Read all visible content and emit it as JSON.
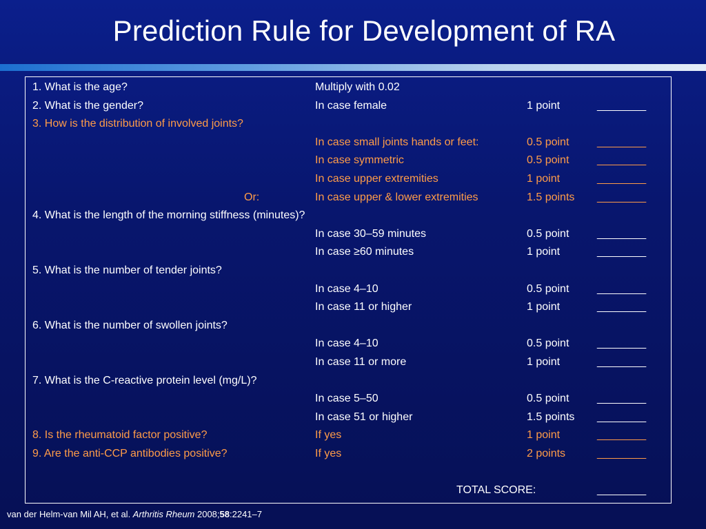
{
  "title": "Prediction Rule for Development of RA",
  "blank": "________",
  "rows": [
    {
      "question": "1. What is the age?",
      "or": "",
      "condition": "Multiply with 0.02",
      "points": "",
      "score_line": false,
      "color": "white"
    },
    {
      "question": "2. What is the gender?",
      "or": "",
      "condition": "In case female",
      "points": "1 point",
      "score_line": true,
      "color": "white"
    },
    {
      "question": "3. How is the distribution of involved joints?",
      "or": "",
      "condition": "",
      "points": "",
      "score_line": false,
      "color": "orange"
    },
    {
      "question": "",
      "or": "",
      "condition": "In case small joints hands or feet:",
      "points": "0.5 point",
      "score_line": true,
      "color": "orange"
    },
    {
      "question": "",
      "or": "",
      "condition": "In case symmetric",
      "points": "0.5 point",
      "score_line": true,
      "color": "orange"
    },
    {
      "question": "",
      "or": "",
      "condition": "In case upper extremities",
      "points": "1 point",
      "score_line": true,
      "color": "orange"
    },
    {
      "question": "",
      "or": "Or:",
      "condition": "In case upper & lower extremities",
      "points": "1.5 points",
      "score_line": true,
      "color": "orange"
    },
    {
      "question": "4. What is the length of the morning stiffness (minutes)?",
      "or": "",
      "condition": "",
      "points": "",
      "score_line": false,
      "color": "white"
    },
    {
      "question": "",
      "or": "",
      "condition": "In case 30–59 minutes",
      "points": "0.5 point",
      "score_line": true,
      "color": "white"
    },
    {
      "question": "",
      "or": "",
      "condition": "In case ≥60 minutes",
      "points": "1 point",
      "score_line": true,
      "color": "white"
    },
    {
      "question": "5. What is the number of tender joints?",
      "or": "",
      "condition": "",
      "points": "",
      "score_line": false,
      "color": "white"
    },
    {
      "question": "",
      "or": "",
      "condition": "In case 4–10",
      "points": "0.5 point",
      "score_line": true,
      "color": "white"
    },
    {
      "question": "",
      "or": "",
      "condition": "In case 11 or higher",
      "points": "1 point",
      "score_line": true,
      "color": "white"
    },
    {
      "question": "6. What is the number of swollen joints?",
      "or": "",
      "condition": "",
      "points": "",
      "score_line": false,
      "color": "white"
    },
    {
      "question": "",
      "or": "",
      "condition": "In case 4–10",
      "points": "0.5 point",
      "score_line": true,
      "color": "white"
    },
    {
      "question": "",
      "or": "",
      "condition": "In case 11 or more",
      "points": "1 point",
      "score_line": true,
      "color": "white"
    },
    {
      "question": "7. What is the C-reactive protein level (mg/L)?",
      "or": "",
      "condition": "",
      "points": "",
      "score_line": false,
      "color": "white"
    },
    {
      "question": "",
      "or": "",
      "condition": "In case 5–50",
      "points": "0.5 point",
      "score_line": true,
      "color": "white"
    },
    {
      "question": "",
      "or": "",
      "condition": "In case 51 or higher",
      "points": "1.5 points",
      "score_line": true,
      "color": "white"
    },
    {
      "question": "8. Is the rheumatoid factor positive?",
      "or": "",
      "condition": "If yes",
      "points": "1 point",
      "score_line": true,
      "color": "orange"
    },
    {
      "question": "9. Are the anti-CCP antibodies positive?",
      "or": "",
      "condition": "If yes",
      "points": "2 points",
      "score_line": true,
      "color": "orange"
    }
  ],
  "total": {
    "label": "TOTAL SCORE:",
    "line": "________"
  },
  "citation": {
    "authors": "van der Helm-van Mil AH, et al. ",
    "journal": "Arthritis Rheum",
    "year": " 2008;",
    "volume": "58",
    "pages": ":2241–7"
  },
  "colors": {
    "background": "#0a1c82",
    "orange_text": "#ff9c48",
    "white_text": "#ffffff",
    "band": "#5f9ce0"
  }
}
